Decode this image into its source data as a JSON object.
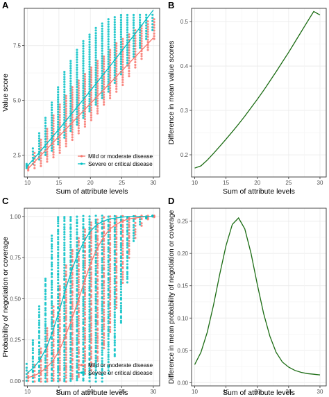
{
  "colors": {
    "mild": "#F8766D",
    "severe": "#00BFC4",
    "difference": "#1a6b12",
    "grid": "#ebebeb",
    "panel_border": "#333333"
  },
  "chart_data": [
    {
      "panel": "A",
      "type": "scatter",
      "xlabel": "Sum of attribute levels",
      "ylabel": "Value score",
      "xlim": [
        9.5,
        31
      ],
      "ylim": [
        1.5,
        9.2
      ],
      "xticks": [
        10,
        15,
        20,
        25,
        30
      ],
      "yticks": [
        2.5,
        5.0,
        7.5
      ],
      "yticklabels": [
        "2.5",
        "5.0",
        "7.5"
      ],
      "grid": true,
      "legend_position": "bottom-right",
      "x": [
        10,
        11,
        12,
        13,
        14,
        15,
        16,
        17,
        18,
        19,
        20,
        21,
        22,
        23,
        24,
        25,
        26,
        27,
        28,
        29,
        30
      ],
      "series": [
        {
          "name": "Mild or moderate disease",
          "fit": [
            1.85,
            2.15,
            2.45,
            2.75,
            3.05,
            3.35,
            3.65,
            3.95,
            4.25,
            4.55,
            4.85,
            5.15,
            5.45,
            5.75,
            6.05,
            6.35,
            6.65,
            6.95,
            7.25,
            7.55,
            7.85
          ],
          "range_min": [
            1.8,
            1.9,
            2.0,
            2.2,
            2.4,
            2.6,
            2.9,
            3.2,
            3.5,
            3.8,
            4.1,
            4.4,
            4.8,
            5.1,
            5.4,
            5.7,
            6.1,
            6.5,
            6.9,
            7.3,
            7.8
          ],
          "range_max": [
            2.0,
            2.6,
            3.2,
            3.7,
            4.3,
            4.8,
            5.2,
            5.6,
            5.9,
            6.2,
            6.5,
            6.8,
            7.0,
            7.3,
            7.6,
            7.8,
            8.0,
            8.2,
            8.4,
            8.6,
            8.7
          ]
        },
        {
          "name": "Severe or critical disease",
          "fit": [
            2.0,
            2.33,
            2.66,
            3.0,
            3.34,
            3.68,
            4.03,
            4.38,
            4.73,
            5.08,
            5.44,
            5.8,
            6.16,
            6.52,
            6.89,
            7.26,
            7.63,
            8.0,
            8.37,
            8.75,
            9.12
          ],
          "range_min": [
            1.9,
            2.1,
            2.3,
            2.5,
            2.7,
            3.0,
            3.3,
            3.6,
            3.9,
            4.2,
            4.5,
            4.8,
            5.1,
            5.4,
            5.8,
            6.2,
            6.6,
            7.0,
            7.4,
            7.8,
            8.2
          ],
          "range_max": [
            2.1,
            2.8,
            3.5,
            4.2,
            4.9,
            5.6,
            6.3,
            6.8,
            7.3,
            7.7,
            8.0,
            8.3,
            8.5,
            8.7,
            8.8,
            8.9,
            8.9,
            8.9,
            8.9,
            8.9,
            8.9
          ]
        }
      ]
    },
    {
      "panel": "B",
      "type": "line",
      "xlabel": "Sum of attribute levels",
      "ylabel": "Difference in mean value scores",
      "xlim": [
        9.5,
        31
      ],
      "ylim": [
        0.15,
        0.53
      ],
      "xticks": [
        10,
        15,
        20,
        25,
        30
      ],
      "yticks": [
        0.2,
        0.3,
        0.4,
        0.5
      ],
      "yticklabels": [
        "0.2",
        "0.3",
        "0.4",
        "0.5"
      ],
      "grid": true,
      "x": [
        10,
        11,
        12,
        13,
        14,
        15,
        16,
        17,
        18,
        19,
        20,
        21,
        22,
        23,
        24,
        25,
        26,
        27,
        28,
        29,
        30
      ],
      "values": [
        0.17,
        0.175,
        0.188,
        0.203,
        0.219,
        0.235,
        0.252,
        0.269,
        0.287,
        0.306,
        0.325,
        0.345,
        0.366,
        0.387,
        0.409,
        0.431,
        0.454,
        0.477,
        0.5,
        0.523,
        0.515
      ]
    },
    {
      "panel": "C",
      "type": "scatter",
      "xlabel": "Sum of attribute levels",
      "ylabel": "Probability of negotiation or coverage",
      "xlim": [
        9.5,
        31
      ],
      "ylim": [
        -0.03,
        1.05
      ],
      "xticks": [
        10,
        15,
        20,
        25,
        30
      ],
      "yticks": [
        0.0,
        0.25,
        0.5,
        0.75,
        1.0
      ],
      "yticklabels": [
        "0.00",
        "0.25",
        "0.50",
        "0.75",
        "1.00"
      ],
      "grid": true,
      "legend_position": "bottom-right",
      "x": [
        10,
        11,
        12,
        13,
        14,
        15,
        16,
        17,
        18,
        19,
        20,
        21,
        22,
        23,
        24,
        25,
        26,
        27,
        28,
        29,
        30
      ],
      "series": [
        {
          "name": "Mild or moderate disease",
          "fit": [
            0.02,
            0.03,
            0.05,
            0.08,
            0.12,
            0.18,
            0.27,
            0.37,
            0.48,
            0.6,
            0.71,
            0.8,
            0.87,
            0.92,
            0.95,
            0.97,
            0.985,
            0.99,
            0.995,
            1.0,
            1.0
          ],
          "range_min": [
            0.0,
            0.0,
            0.0,
            0.0,
            0.0,
            0.0,
            0.0,
            0.01,
            0.02,
            0.04,
            0.07,
            0.12,
            0.2,
            0.3,
            0.45,
            0.6,
            0.75,
            0.87,
            0.94,
            0.98,
            1.0
          ],
          "range_max": [
            0.05,
            0.1,
            0.2,
            0.32,
            0.45,
            0.58,
            0.7,
            0.8,
            0.87,
            0.92,
            0.96,
            0.98,
            0.99,
            1.0,
            1.0,
            1.0,
            1.0,
            1.0,
            1.0,
            1.0,
            1.0
          ]
        },
        {
          "name": "Severe or critical disease",
          "fit": [
            0.05,
            0.08,
            0.13,
            0.2,
            0.3,
            0.42,
            0.55,
            0.67,
            0.77,
            0.85,
            0.91,
            0.95,
            0.97,
            0.985,
            0.99,
            0.995,
            1.0,
            1.0,
            1.0,
            1.0,
            1.0
          ],
          "range_min": [
            0.0,
            0.0,
            0.0,
            0.0,
            0.0,
            0.0,
            0.0,
            0.0,
            0.0,
            0.0,
            0.0,
            0.0,
            0.0,
            0.05,
            0.15,
            0.35,
            0.6,
            0.85,
            0.95,
            0.99,
            1.0
          ],
          "range_max": [
            0.1,
            0.25,
            0.45,
            0.62,
            0.88,
            1.0,
            1.0,
            1.0,
            1.0,
            1.0,
            1.0,
            1.0,
            1.0,
            1.0,
            1.0,
            1.0,
            1.0,
            1.0,
            1.0,
            1.0,
            1.0
          ]
        }
      ]
    },
    {
      "panel": "D",
      "type": "line",
      "xlabel": "Sum of attribute levels",
      "ylabel": "Difference in mean probability of negotiation or coverage",
      "xlim": [
        9.5,
        31
      ],
      "ylim": [
        -0.005,
        0.27
      ],
      "xticks": [
        10,
        15,
        20,
        25,
        30
      ],
      "yticks": [
        0.0,
        0.05,
        0.1,
        0.15,
        0.2,
        0.25
      ],
      "yticklabels": [
        "0.00",
        "0.05",
        "0.10",
        "0.15",
        "0.20",
        "0.25"
      ],
      "grid": true,
      "x": [
        10,
        11,
        12,
        13,
        14,
        15,
        16,
        17,
        18,
        19,
        20,
        21,
        22,
        23,
        24,
        25,
        26,
        27,
        28,
        29,
        30
      ],
      "values": [
        0.028,
        0.047,
        0.078,
        0.12,
        0.168,
        0.212,
        0.245,
        0.255,
        0.238,
        0.2,
        0.152,
        0.107,
        0.072,
        0.047,
        0.032,
        0.024,
        0.019,
        0.016,
        0.014,
        0.013,
        0.012
      ]
    }
  ]
}
